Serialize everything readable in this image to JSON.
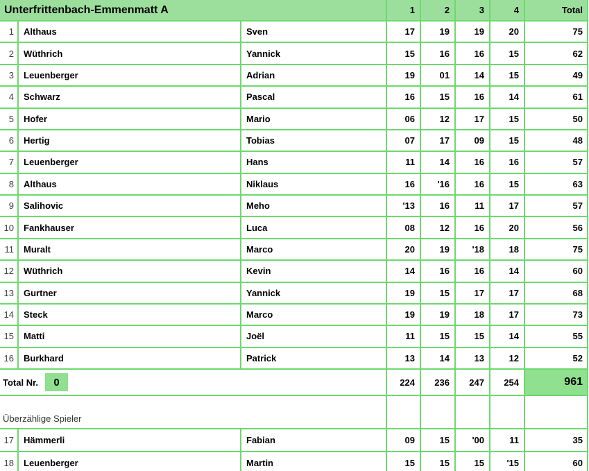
{
  "table": {
    "title": "Unterfrittenbach-Emmenmatt A",
    "round_headers": [
      "1",
      "2",
      "3",
      "4"
    ],
    "total_header": "Total",
    "players": [
      {
        "nr": "1",
        "last": "Althaus",
        "first": "Sven",
        "r1": "17",
        "r2": "19",
        "r3": "19",
        "r4": "20",
        "total": "75"
      },
      {
        "nr": "2",
        "last": "Wüthrich",
        "first": "Yannick",
        "r1": "15",
        "r2": "16",
        "r3": "16",
        "r4": "15",
        "total": "62"
      },
      {
        "nr": "3",
        "last": "Leuenberger",
        "first": "Adrian",
        "r1": "19",
        "r2": "01",
        "r3": "14",
        "r4": "15",
        "total": "49"
      },
      {
        "nr": "4",
        "last": "Schwarz",
        "first": "Pascal",
        "r1": "16",
        "r2": "15",
        "r3": "16",
        "r4": "14",
        "total": "61"
      },
      {
        "nr": "5",
        "last": "Hofer",
        "first": "Mario",
        "r1": "06",
        "r2": "12",
        "r3": "17",
        "r4": "15",
        "total": "50"
      },
      {
        "nr": "6",
        "last": "Hertig",
        "first": "Tobias",
        "r1": "07",
        "r2": "17",
        "r3": "09",
        "r4": "15",
        "total": "48"
      },
      {
        "nr": "7",
        "last": "Leuenberger",
        "first": "Hans",
        "r1": "11",
        "r2": "14",
        "r3": "16",
        "r4": "16",
        "total": "57"
      },
      {
        "nr": "8",
        "last": "Althaus",
        "first": "Niklaus",
        "r1": "16",
        "r2": "'16",
        "r3": "16",
        "r4": "15",
        "total": "63"
      },
      {
        "nr": "9",
        "last": "Salihovic",
        "first": "Meho",
        "r1": "'13",
        "r2": "16",
        "r3": "11",
        "r4": "17",
        "total": "57"
      },
      {
        "nr": "10",
        "last": "Fankhauser",
        "first": "Luca",
        "r1": "08",
        "r2": "12",
        "r3": "16",
        "r4": "20",
        "total": "56"
      },
      {
        "nr": "11",
        "last": "Muralt",
        "first": "Marco",
        "r1": "20",
        "r2": "19",
        "r3": "'18",
        "r4": "18",
        "total": "75"
      },
      {
        "nr": "12",
        "last": "Wüthrich",
        "first": "Kevin",
        "r1": "14",
        "r2": "16",
        "r3": "16",
        "r4": "14",
        "total": "60"
      },
      {
        "nr": "13",
        "last": "Gurtner",
        "first": "Yannick",
        "r1": "19",
        "r2": "15",
        "r3": "17",
        "r4": "17",
        "total": "68"
      },
      {
        "nr": "14",
        "last": "Steck",
        "first": "Marco",
        "r1": "19",
        "r2": "19",
        "r3": "18",
        "r4": "17",
        "total": "73"
      },
      {
        "nr": "15",
        "last": "Matti",
        "first": "Joël",
        "r1": "11",
        "r2": "15",
        "r3": "15",
        "r4": "14",
        "total": "55"
      },
      {
        "nr": "16",
        "last": "Burkhard",
        "first": "Patrick",
        "r1": "13",
        "r2": "14",
        "r3": "13",
        "r4": "12",
        "total": "52"
      }
    ],
    "totals_row": {
      "label": "Total Nr.",
      "nr_value": "0",
      "r1": "224",
      "r2": "236",
      "r3": "247",
      "r4": "254",
      "total": "961"
    },
    "extra_section_label": "Überzählige Spieler",
    "extra_players": [
      {
        "nr": "17",
        "last": "Hämmerli",
        "first": "Fabian",
        "r1": "09",
        "r2": "15",
        "r3": "'00",
        "r4": "11",
        "total": "35"
      },
      {
        "nr": "18",
        "last": "Leuenberger",
        "first": "Martin",
        "r1": "15",
        "r2": "15",
        "r3": "15",
        "r4": "'15",
        "total": "60"
      }
    ],
    "colors": {
      "header_bg": "#9CDF9C",
      "highlight_bg": "#8FE08F",
      "grid": "#6CD96C"
    }
  }
}
